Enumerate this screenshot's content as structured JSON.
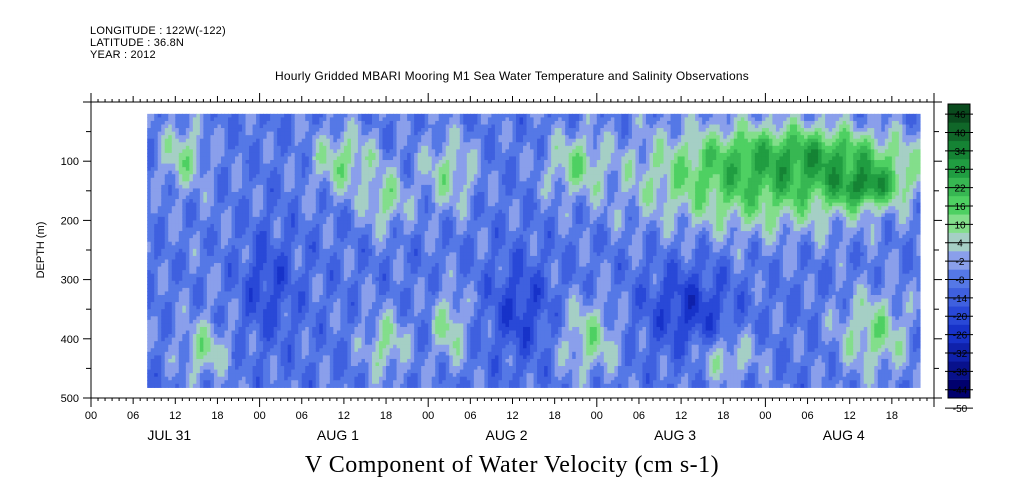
{
  "header": {
    "longitude": "LONGITUDE : 122W(-122)",
    "latitude": "LATITUDE : 36.8N",
    "year": "YEAR : 2012"
  },
  "title": "Hourly Gridded MBARI Mooring M1 Sea Water Temperature and Salinity Observations",
  "bottom_title": "V Component of Water Velocity (cm s-1)",
  "chart_data": {
    "type": "heatmap",
    "title": "Hourly Gridded MBARI Mooring M1 Sea Water Temperature and Salinity Observations",
    "xlabel": "",
    "ylabel": "DEPTH (m)",
    "colorbar_label": "V Component of Water Velocity (cm s-1)",
    "x_range_hours": [
      0,
      120
    ],
    "data_start_hour": 8,
    "data_end_hour": 118,
    "x_hour_ticks": [
      "00",
      "06",
      "12",
      "18",
      "00",
      "06",
      "12",
      "18",
      "00",
      "06",
      "12",
      "18",
      "00",
      "06",
      "12",
      "18",
      "00",
      "06",
      "12",
      "18"
    ],
    "x_day_labels": [
      "JUL 31",
      "AUG  1",
      "AUG  2",
      "AUG  3",
      "AUG  4"
    ],
    "y_range": [
      0,
      500
    ],
    "y_reversed": true,
    "y_ticks": [
      100,
      200,
      300,
      400,
      500
    ],
    "colorbar": {
      "levels": [
        -50,
        -44,
        -38,
        -32,
        -26,
        -20,
        -14,
        -8,
        -2,
        4,
        10,
        16,
        22,
        28,
        34,
        40,
        46
      ],
      "labels": [
        "46",
        "40",
        "34",
        "28",
        "22",
        "16",
        "10",
        "4",
        "-2",
        "-8",
        "-14",
        "-20",
        "-26",
        "-32",
        "-38",
        "-44",
        "-50"
      ]
    },
    "regions": [
      {
        "day_hours": [
          8,
          26
        ],
        "depth": [
          20,
          480
        ],
        "v": -10
      },
      {
        "day_hours": [
          9,
          17
        ],
        "depth": [
          20,
          160
        ],
        "v": 5
      },
      {
        "day_hours": [
          30,
          42
        ],
        "depth": [
          30,
          170
        ],
        "v": 6
      },
      {
        "day_hours": [
          38,
          46
        ],
        "depth": [
          100,
          230
        ],
        "v": 5
      },
      {
        "day_hours": [
          46,
          56
        ],
        "depth": [
          40,
          200
        ],
        "v": 4
      },
      {
        "day_hours": [
          48,
          54
        ],
        "depth": [
          300,
          460
        ],
        "v": 5
      },
      {
        "day_hours": [
          64,
          74
        ],
        "depth": [
          40,
          170
        ],
        "v": 6
      },
      {
        "day_hours": [
          72,
          118
        ],
        "depth": [
          20,
          240
        ],
        "v": 14
      },
      {
        "day_hours": [
          86,
          118
        ],
        "depth": [
          40,
          160
        ],
        "v": 24
      },
      {
        "day_hours": [
          104,
          116
        ],
        "depth": [
          100,
          180
        ],
        "v": 30
      },
      {
        "day_hours": [
          105,
          118
        ],
        "depth": [
          300,
          480
        ],
        "v": 6
      },
      {
        "day_hours": [
          12,
          20
        ],
        "depth": [
          360,
          480
        ],
        "v": 5
      },
      {
        "day_hours": [
          38,
          46
        ],
        "depth": [
          340,
          480
        ],
        "v": 4
      },
      {
        "day_hours": [
          66,
          76
        ],
        "depth": [
          320,
          480
        ],
        "v": 5
      },
      {
        "day_hours": [
          84,
          96
        ],
        "depth": [
          380,
          480
        ],
        "v": 4
      },
      {
        "day_hours": [
          20,
          30
        ],
        "depth": [
          200,
          420
        ],
        "v": -22
      },
      {
        "day_hours": [
          56,
          66
        ],
        "depth": [
          250,
          450
        ],
        "v": -24
      },
      {
        "day_hours": [
          78,
          92
        ],
        "depth": [
          260,
          440
        ],
        "v": -26
      }
    ]
  }
}
